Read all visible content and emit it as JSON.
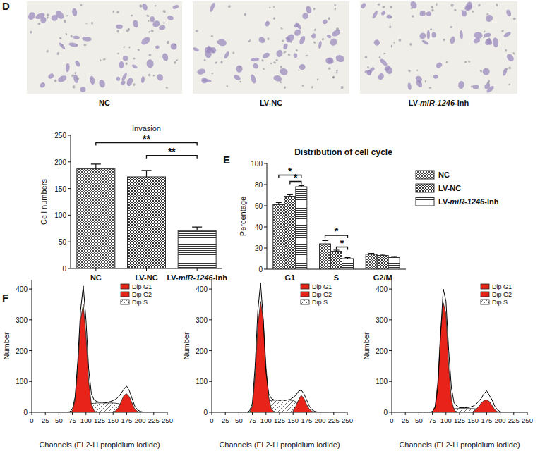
{
  "panel_labels": [
    "D",
    "E",
    "F"
  ],
  "images": [
    {
      "label": "NC"
    },
    {
      "label": "LV-NC"
    },
    {
      "label": "LV-miR-1246-Inh"
    }
  ],
  "chart_data": [
    {
      "type": "bar",
      "title": "Invasion",
      "y_label": "Cell numbers",
      "categories": [
        "NC",
        "LV-NC",
        "LV-miR-1246-Inh"
      ],
      "values": [
        187,
        172,
        71
      ],
      "errors": [
        9,
        12,
        7
      ],
      "color": "#333333",
      "ylim": [
        0,
        250
      ],
      "yticks": [
        0,
        50,
        100,
        150,
        200,
        250
      ],
      "annotations": [
        {
          "text": "**",
          "from": 0,
          "to": 2,
          "y": 236
        },
        {
          "text": "**",
          "from": 1,
          "to": 2,
          "y": 212
        }
      ]
    },
    {
      "type": "bar",
      "title": "Distribution of cell cycle",
      "y_label": "Percentage",
      "categories": [
        "G1",
        "S",
        "G2/M"
      ],
      "series": [
        {
          "name": "NC",
          "color": "#333333",
          "values": [
            61,
            24,
            14
          ],
          "errors": [
            2,
            3,
            1
          ]
        },
        {
          "name": "LV-NC",
          "color": "#333333",
          "values": [
            69,
            17,
            13
          ],
          "errors": [
            2,
            1,
            1
          ]
        },
        {
          "name": "LV-miR-1246-Inh",
          "color": "#333333",
          "values": [
            78,
            10,
            11
          ],
          "errors": [
            1,
            1,
            1
          ]
        }
      ],
      "ylim": [
        0,
        100
      ],
      "yticks": [
        0,
        20,
        40,
        60,
        80,
        100
      ],
      "legend": "right",
      "annotations": [
        {
          "text": "*",
          "category": 0,
          "from": 0,
          "to": 2,
          "y": 89
        },
        {
          "text": "*",
          "category": 0,
          "from": 1,
          "to": 2,
          "y": 83
        },
        {
          "text": "*",
          "category": 1,
          "from": 0,
          "to": 2,
          "y": 32
        },
        {
          "text": "*",
          "category": 1,
          "from": 1,
          "to": 2,
          "y": 21
        }
      ]
    },
    {
      "type": "area",
      "x_label": "Channels (FL2-H propidium iodide)",
      "y_label": "Number",
      "xlim": [
        0,
        250
      ],
      "xticks": [
        0,
        25,
        50,
        75,
        100,
        125,
        150,
        175,
        200,
        225,
        250
      ],
      "ylim": [
        0,
        430
      ],
      "yticks": [
        0,
        100,
        200,
        300,
        400
      ],
      "legend": "upper right",
      "series": [
        {
          "name": "Dip G1",
          "color": "#e8231a",
          "x": [
            70,
            75,
            80,
            85,
            90,
            95,
            100,
            105,
            110,
            115,
            120
          ],
          "values": [
            0,
            5,
            40,
            150,
            300,
            350,
            250,
            100,
            25,
            5,
            0
          ]
        },
        {
          "name": "Dip G2",
          "color": "#e8231a",
          "x": [
            150,
            155,
            160,
            165,
            170,
            175,
            180,
            185,
            190,
            195,
            200
          ],
          "values": [
            0,
            5,
            15,
            35,
            55,
            60,
            50,
            30,
            10,
            3,
            0
          ]
        },
        {
          "name": "Dip S",
          "color": "#ffffff",
          "x": [
            95,
            100,
            110,
            120,
            130,
            140,
            150,
            160,
            170,
            180,
            185
          ],
          "values": [
            0,
            20,
            28,
            30,
            30,
            30,
            30,
            28,
            22,
            8,
            0
          ]
        },
        {
          "type": "line",
          "color": "#000000",
          "x": [
            65,
            70,
            75,
            80,
            85,
            90,
            95,
            100,
            105,
            110,
            115,
            120,
            125,
            130,
            135,
            140,
            145,
            150,
            155,
            160,
            165,
            170,
            175,
            180,
            185,
            190,
            195,
            200,
            205,
            210,
            215
          ],
          "values": [
            0,
            2,
            10,
            50,
            170,
            330,
            410,
            300,
            140,
            60,
            40,
            35,
            32,
            33,
            30,
            32,
            35,
            38,
            42,
            50,
            62,
            75,
            85,
            70,
            45,
            20,
            8,
            3,
            1,
            0,
            0
          ]
        }
      ]
    },
    {
      "type": "area",
      "x_label": "Channels (FL2-H propidium iodide)",
      "y_label": "Number",
      "xlim": [
        0,
        250
      ],
      "xticks": [
        0,
        25,
        50,
        75,
        100,
        125,
        150,
        175,
        200,
        225,
        250
      ],
      "ylim": [
        0,
        430
      ],
      "yticks": [
        0,
        100,
        200,
        300,
        400
      ],
      "legend": "upper right",
      "series": [
        {
          "name": "Dip G1",
          "color": "#e8231a",
          "x": [
            70,
            75,
            80,
            85,
            90,
            95,
            100,
            105,
            110,
            115,
            120
          ],
          "values": [
            0,
            20,
            120,
            280,
            360,
            300,
            150,
            50,
            10,
            2,
            0
          ]
        },
        {
          "name": "Dip G2",
          "color": "#e8231a",
          "x": [
            150,
            155,
            160,
            165,
            170,
            175,
            180,
            185,
            190,
            195,
            200
          ],
          "values": [
            5,
            20,
            40,
            55,
            45,
            25,
            10,
            3,
            0,
            0,
            0
          ]
        },
        {
          "name": "Dip S",
          "color": "#ffffff",
          "x": [
            95,
            100,
            110,
            120,
            130,
            140,
            150,
            160,
            170,
            180,
            185
          ],
          "values": [
            0,
            35,
            38,
            40,
            40,
            40,
            38,
            30,
            10,
            2,
            0
          ]
        },
        {
          "type": "line",
          "color": "#000000",
          "x": [
            65,
            70,
            75,
            80,
            85,
            90,
            95,
            100,
            105,
            110,
            115,
            120,
            125,
            130,
            135,
            140,
            145,
            150,
            155,
            160,
            165,
            170,
            175,
            180,
            185,
            190,
            195,
            200,
            205,
            210,
            215
          ],
          "values": [
            0,
            5,
            30,
            150,
            330,
            420,
            300,
            130,
            60,
            45,
            40,
            40,
            38,
            40,
            38,
            40,
            42,
            48,
            55,
            68,
            72,
            60,
            40,
            20,
            8,
            3,
            1,
            0,
            0,
            0,
            0
          ]
        }
      ]
    },
    {
      "type": "area",
      "x_label": "Channels (FL2-H propidium iodide)",
      "y_label": "Number",
      "xlim": [
        0,
        250
      ],
      "xticks": [
        0,
        25,
        50,
        75,
        100,
        125,
        150,
        175,
        200,
        225,
        250
      ],
      "ylim": [
        0,
        430
      ],
      "yticks": [
        0,
        100,
        200,
        300,
        400
      ],
      "legend": "upper right",
      "series": [
        {
          "name": "Dip G1",
          "color": "#e8231a",
          "x": [
            70,
            75,
            80,
            85,
            90,
            95,
            100,
            105,
            110,
            115,
            120
          ],
          "values": [
            0,
            2,
            20,
            100,
            260,
            355,
            320,
            150,
            40,
            8,
            0
          ]
        },
        {
          "name": "Dip G2",
          "color": "#e8231a",
          "x": [
            150,
            155,
            160,
            165,
            170,
            175,
            180,
            185,
            190,
            195,
            200
          ],
          "values": [
            2,
            8,
            18,
            30,
            38,
            40,
            35,
            22,
            8,
            2,
            0
          ]
        },
        {
          "name": "Dip S",
          "color": "#ffffff",
          "x": [
            95,
            100,
            110,
            120,
            130,
            140,
            150,
            160,
            170,
            180,
            185
          ],
          "values": [
            0,
            8,
            12,
            12,
            12,
            12,
            12,
            10,
            6,
            2,
            0
          ]
        },
        {
          "type": "line",
          "color": "#000000",
          "x": [
            65,
            70,
            75,
            80,
            85,
            90,
            95,
            100,
            105,
            110,
            115,
            120,
            125,
            130,
            135,
            140,
            145,
            150,
            155,
            160,
            165,
            170,
            175,
            180,
            185,
            190,
            195,
            200,
            205,
            210,
            215
          ],
          "values": [
            0,
            0,
            3,
            15,
            80,
            250,
            400,
            360,
            200,
            80,
            30,
            20,
            15,
            15,
            15,
            15,
            17,
            20,
            25,
            35,
            45,
            60,
            70,
            55,
            40,
            20,
            8,
            2,
            0,
            0,
            0
          ]
        }
      ]
    }
  ]
}
